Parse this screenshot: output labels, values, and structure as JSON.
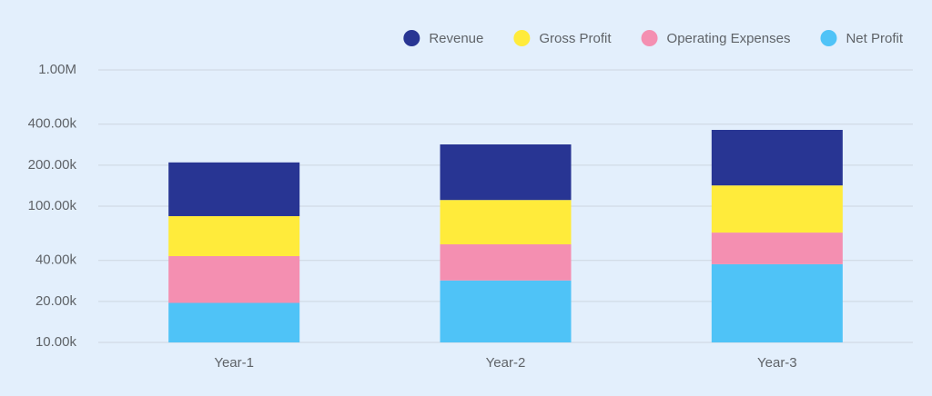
{
  "chart_data": {
    "type": "stacked-bar",
    "categories": [
      "Year-1",
      "Year-2",
      "Year-3"
    ],
    "series": [
      {
        "name": "Revenue",
        "color": "#283593",
        "values": [
          125000,
          173000,
          221000
        ]
      },
      {
        "name": "Gross Profit",
        "color": "#ffeb3b",
        "values": [
          41500,
          58500,
          78000
        ]
      },
      {
        "name": "Operating Expenses",
        "color": "#f48fb1",
        "values": [
          23500,
          24000,
          26500
        ]
      },
      {
        "name": "Net Profit",
        "color": "#4fc3f7",
        "values": [
          19500,
          28500,
          37500
        ]
      }
    ],
    "log_scale": true,
    "ylim": [
      10000,
      1000000
    ],
    "yticks": [
      {
        "value": 10000,
        "label": "10.00k"
      },
      {
        "value": 20000,
        "label": "20.00k"
      },
      {
        "value": 40000,
        "label": "40.00k"
      },
      {
        "value": 100000,
        "label": "100.00k"
      },
      {
        "value": 200000,
        "label": "200.00k"
      },
      {
        "value": 400000,
        "label": "400.00k"
      },
      {
        "value": 1000000,
        "label": "1.00M"
      }
    ],
    "grid": true,
    "legend": "top-right"
  }
}
